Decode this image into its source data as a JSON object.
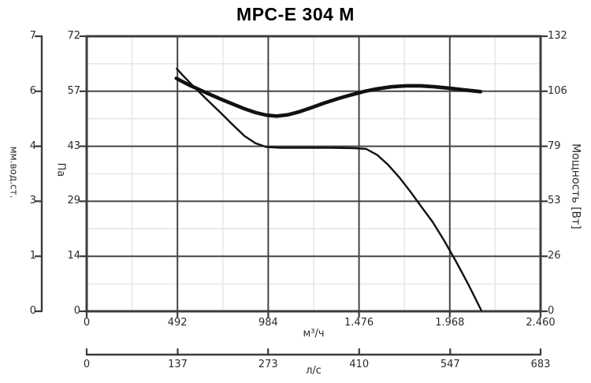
{
  "title": "MPC-E 304 M",
  "chart_data": {
    "type": "line",
    "title": "MPC-E 304 M",
    "grid": true,
    "legend": false,
    "x_axes": [
      {
        "id": "m3h",
        "label": "м³/ч",
        "range": [
          0,
          2460
        ],
        "tick_values": [
          0,
          492,
          984,
          1476,
          1968,
          2460
        ],
        "tick_labels": [
          "0",
          "492",
          "984",
          "1.476",
          "1.968",
          "2.460"
        ]
      },
      {
        "id": "ls",
        "label": "л/с",
        "range": [
          0,
          683
        ],
        "tick_values": [
          0,
          137,
          273,
          410,
          547,
          683
        ],
        "tick_labels": [
          "0",
          "137",
          "273",
          "410",
          "547",
          "683"
        ]
      }
    ],
    "y_axes": [
      {
        "id": "mm",
        "label": "мм.вод.ст.",
        "range": [
          0,
          7.34
        ],
        "tick_values": [
          0,
          1.468,
          2.936,
          4.404,
          5.872,
          7.34
        ],
        "tick_labels": [
          "0",
          "1",
          "3",
          "4",
          "6",
          "7"
        ]
      },
      {
        "id": "pa",
        "label": "Па",
        "range": [
          0,
          72
        ],
        "tick_values": [
          0,
          14.4,
          28.8,
          43.2,
          57.6,
          72
        ],
        "tick_labels": [
          "0",
          "14",
          "29",
          "43",
          "57",
          "72"
        ]
      },
      {
        "id": "w",
        "label": "Мощность [Вт]",
        "range": [
          0,
          132
        ],
        "tick_values": [
          0,
          26.4,
          52.8,
          79.2,
          105.6,
          132
        ],
        "tick_labels": [
          "0",
          "26",
          "53",
          "79",
          "106",
          "132"
        ]
      }
    ],
    "grid_minor": {
      "x_values": [
        246,
        738,
        1230,
        1722,
        2214
      ],
      "y_pa_values": [
        7.2,
        21.6,
        36.0,
        50.4,
        64.8
      ]
    },
    "series": [
      {
        "name": "pressure-curve",
        "y_axis": "pa",
        "stroke_width": 2.4,
        "points": [
          [
            488,
            63.5
          ],
          [
            520,
            61.8
          ],
          [
            560,
            59.8
          ],
          [
            610,
            57.4
          ],
          [
            665,
            54.8
          ],
          [
            725,
            52.0
          ],
          [
            790,
            48.9
          ],
          [
            855,
            45.9
          ],
          [
            915,
            44.0
          ],
          [
            975,
            43.0
          ],
          [
            1050,
            42.8
          ],
          [
            1180,
            42.8
          ],
          [
            1320,
            42.8
          ],
          [
            1450,
            42.7
          ],
          [
            1515,
            42.5
          ],
          [
            1575,
            40.9
          ],
          [
            1635,
            38.3
          ],
          [
            1695,
            35.0
          ],
          [
            1755,
            31.3
          ],
          [
            1815,
            27.3
          ],
          [
            1875,
            23.4
          ],
          [
            1935,
            18.7
          ],
          [
            2000,
            13.2
          ],
          [
            2070,
            6.9
          ],
          [
            2138,
            0.3
          ]
        ]
      },
      {
        "name": "power-curve",
        "y_axis": "w",
        "stroke_width": 4.6,
        "points": [
          [
            486,
            111.8
          ],
          [
            520,
            110.2
          ],
          [
            560,
            108.4
          ],
          [
            610,
            106.4
          ],
          [
            665,
            104.2
          ],
          [
            725,
            101.9
          ],
          [
            790,
            99.5
          ],
          [
            855,
            97.2
          ],
          [
            915,
            95.4
          ],
          [
            975,
            94.1
          ],
          [
            1030,
            93.7
          ],
          [
            1090,
            94.3
          ],
          [
            1150,
            95.7
          ],
          [
            1220,
            97.8
          ],
          [
            1290,
            100.0
          ],
          [
            1360,
            102.0
          ],
          [
            1430,
            103.8
          ],
          [
            1500,
            105.4
          ],
          [
            1570,
            106.7
          ],
          [
            1650,
            107.7
          ],
          [
            1730,
            108.2
          ],
          [
            1810,
            108.2
          ],
          [
            1890,
            107.7
          ],
          [
            1970,
            107.0
          ],
          [
            2050,
            106.2
          ],
          [
            2135,
            105.4
          ]
        ]
      }
    ],
    "style": {
      "curve_color": "#111111",
      "axis_color": "#3c3c3c",
      "grid_major_color": "#454545",
      "grid_minor_color": "#e3e3e3",
      "text_color": "#2b2b2b",
      "background": "#ffffff"
    }
  }
}
